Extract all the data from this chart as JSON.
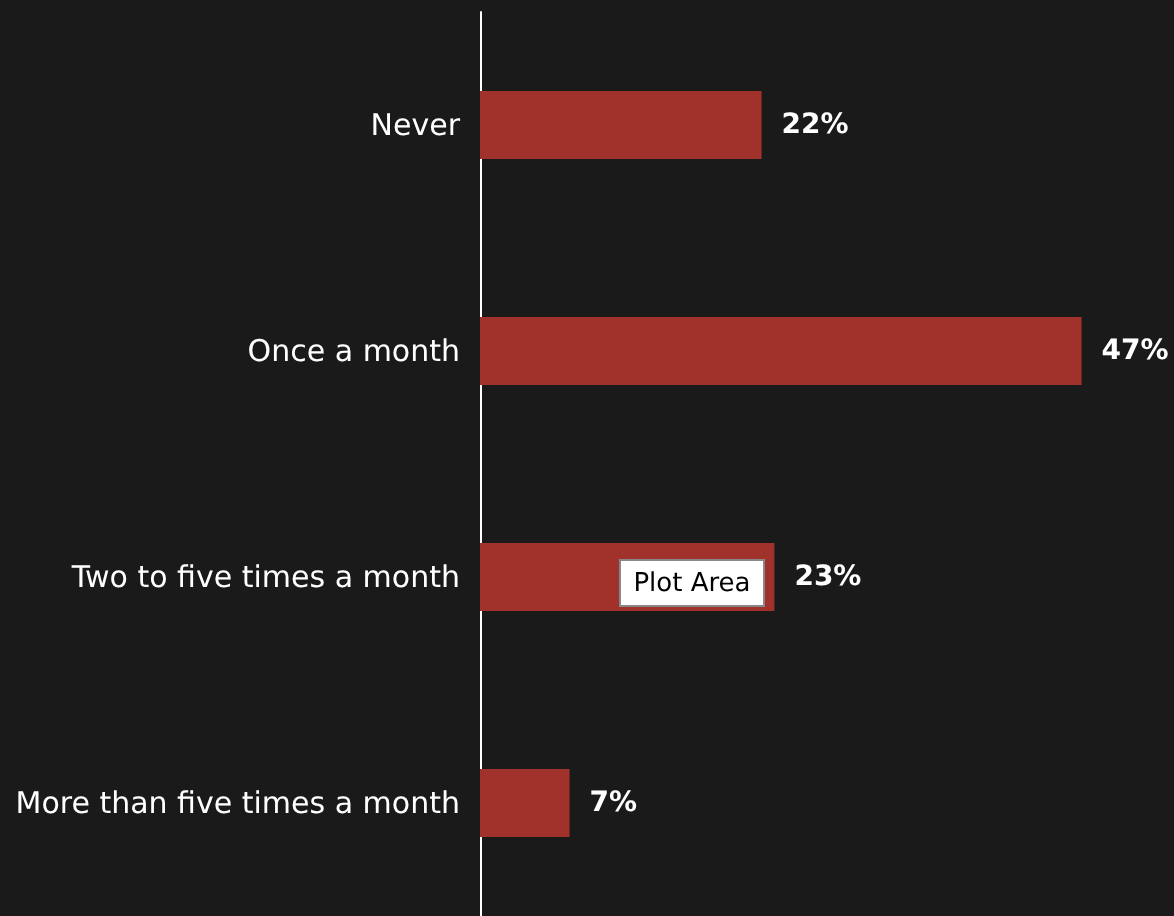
{
  "chart_data": {
    "type": "bar",
    "orientation": "horizontal",
    "categories": [
      "Never",
      "Once a month",
      "Two to five times a month",
      "More than five times a month"
    ],
    "values": [
      22,
      47,
      23,
      7
    ],
    "color": "#a0322b",
    "value_labels": [
      "22%",
      "47%",
      "23%",
      "7%"
    ],
    "annotations": [
      "Plot Area"
    ]
  }
}
